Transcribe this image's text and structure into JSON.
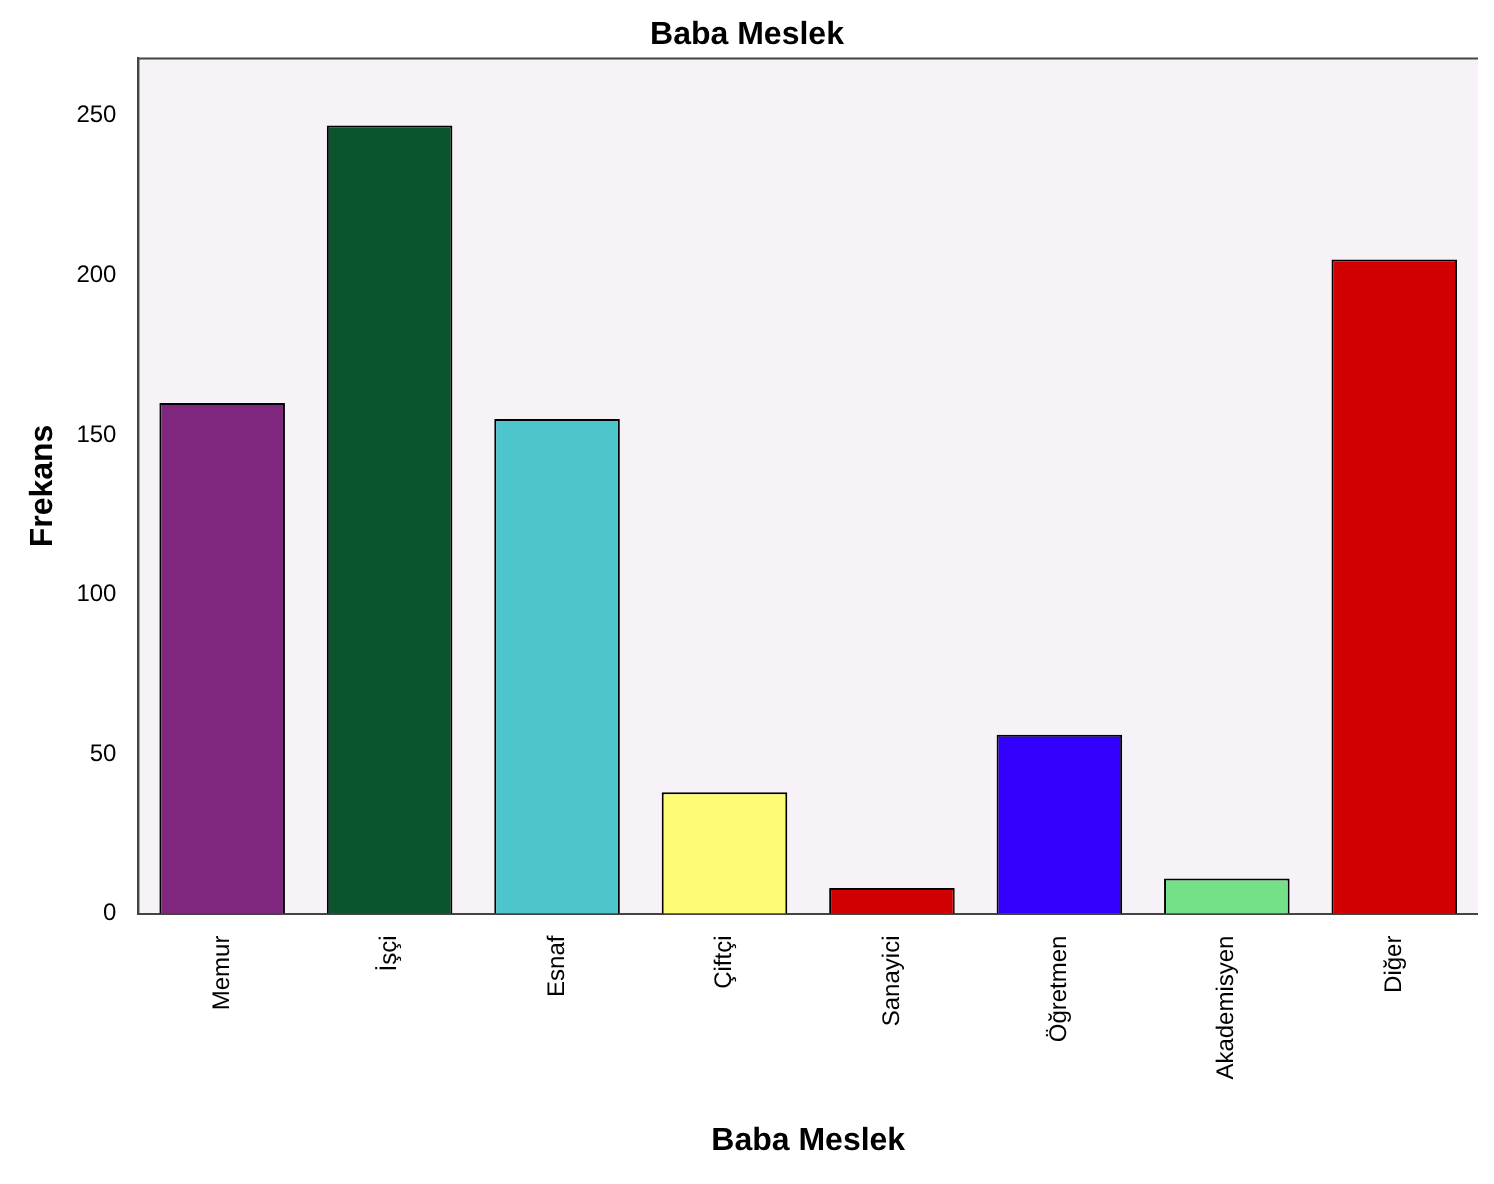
{
  "chart_data": {
    "type": "bar",
    "title": "Baba Meslek",
    "xlabel": "Baba Meslek",
    "ylabel": "Frekans",
    "categories": [
      "Memur",
      "İşçi",
      "Esnaf",
      "Çiftçi",
      "Sanayici",
      "Öğretmen",
      "Akademisyen",
      "Diğer"
    ],
    "values": [
      160,
      247,
      155,
      38,
      8,
      56,
      11,
      205
    ],
    "colors": [
      "#7f277f",
      "#0a552d",
      "#4cc6cc",
      "#fefb75",
      "#d10000",
      "#3300ff",
      "#74e088",
      "#d10000"
    ],
    "ylim": [
      0,
      268
    ],
    "yticks": [
      0,
      50,
      100,
      150,
      200,
      250
    ],
    "grid": false,
    "legend": false
  }
}
